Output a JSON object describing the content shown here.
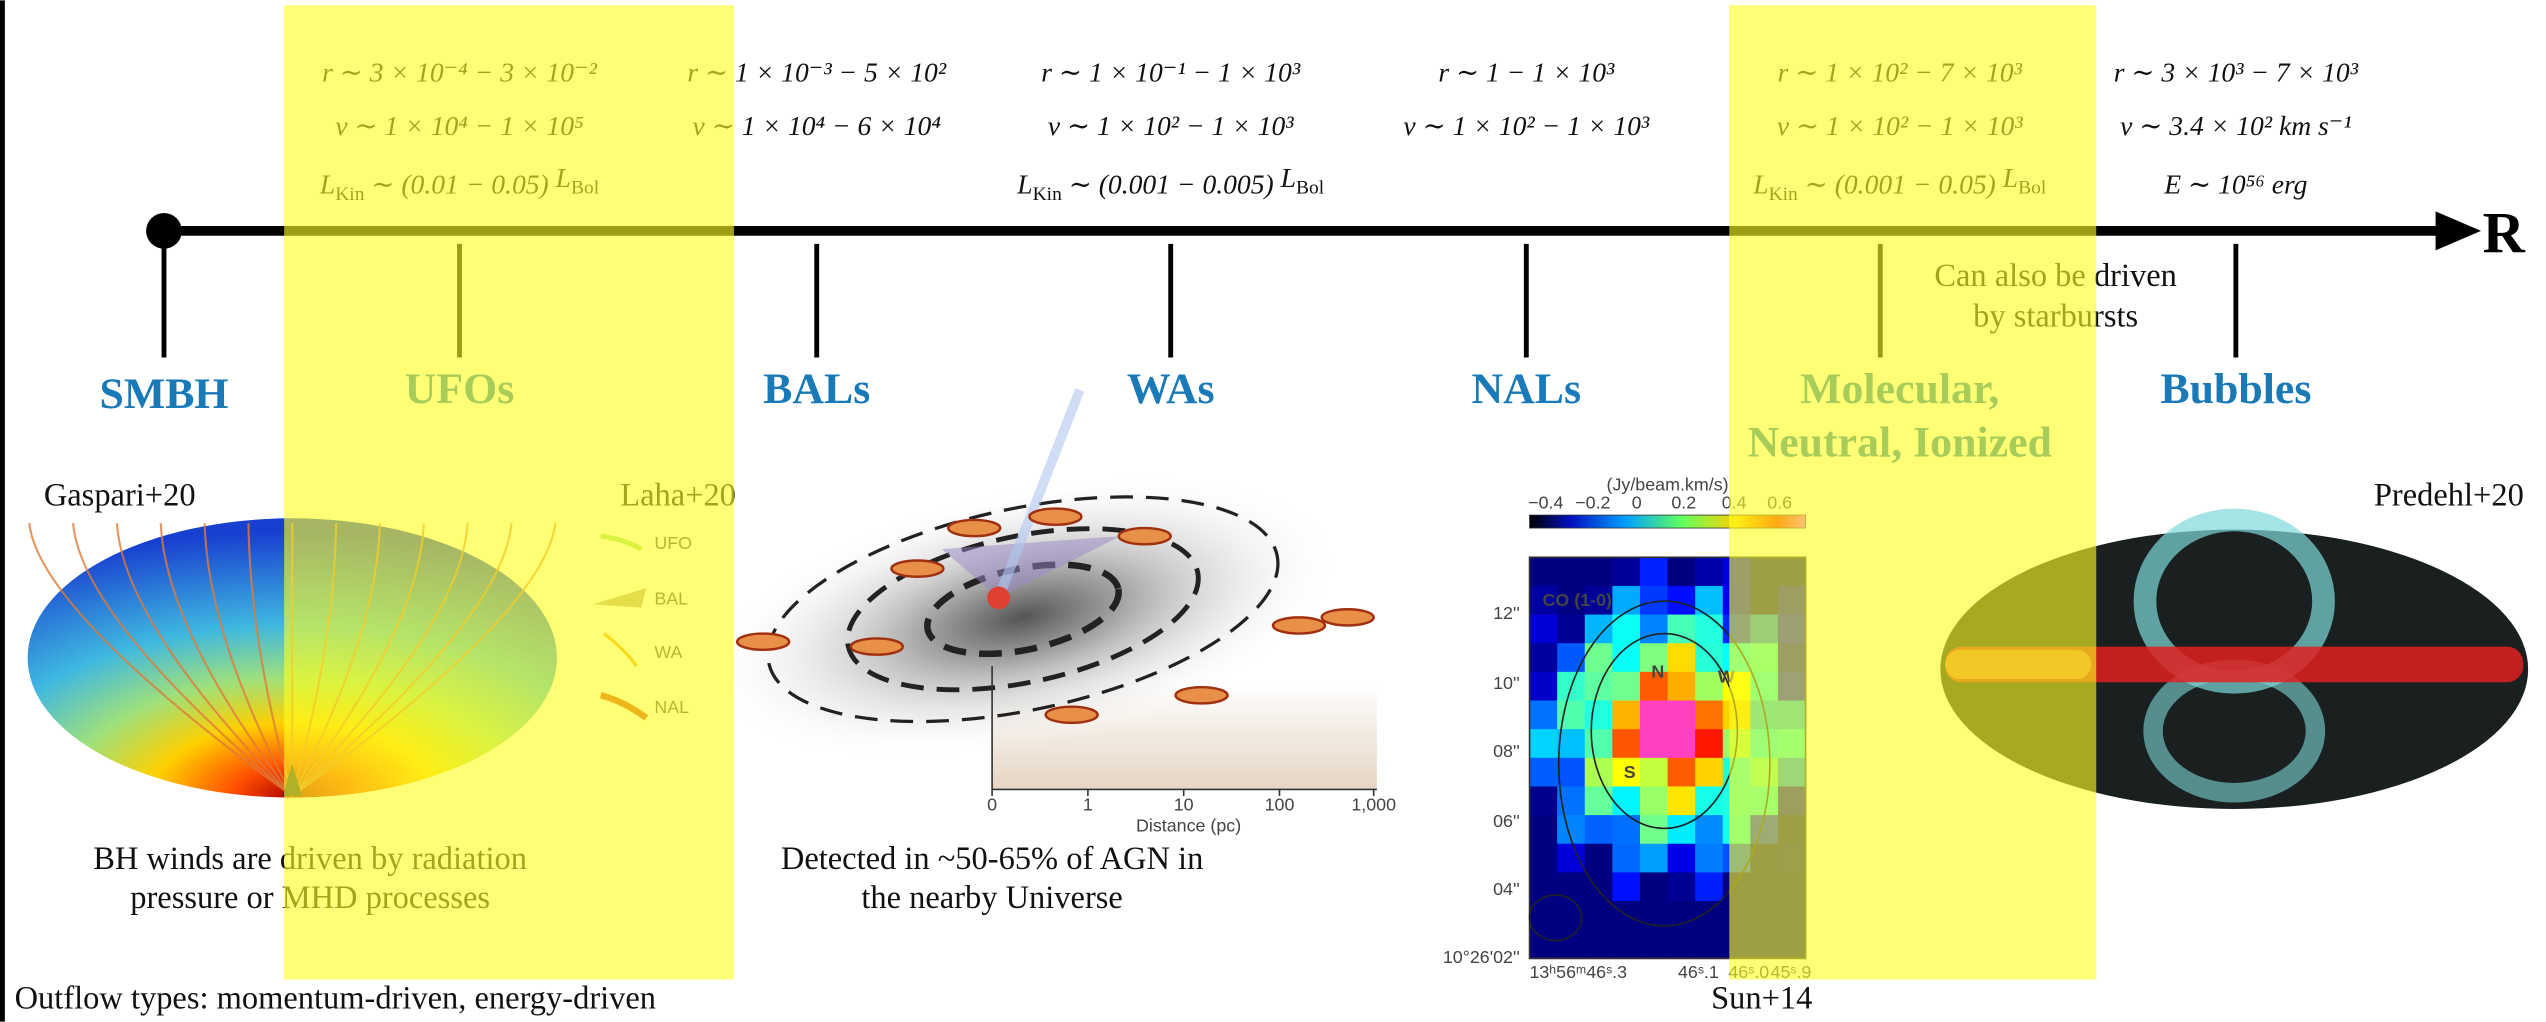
{
  "timeline": {
    "end_label": "R"
  },
  "columns": [
    {
      "label": [
        "SMBH"
      ]
    },
    {
      "label": [
        "UFOs"
      ],
      "lines": [
        "r ∼ 3 × 10⁻⁴ − 3 × 10⁻²",
        "v ∼ 1 × 10⁴ − 1 × 10⁵",
        [
          "L",
          "Kin",
          " ∼ (0.01 − 0.05) ",
          "L",
          "Bol"
        ]
      ]
    },
    {
      "label": [
        "BALs"
      ],
      "lines": [
        "r ∼ 1 × 10⁻³ − 5 × 10²",
        "v ∼ 1 × 10⁴ − 6 × 10⁴"
      ]
    },
    {
      "label": [
        "WAs"
      ],
      "lines": [
        "r ∼ 1 × 10⁻¹ − 1 × 10³",
        "v ∼ 1 × 10² − 1 × 10³",
        [
          "L",
          "Kin",
          " ∼ (0.001 − 0.005) ",
          "L",
          "Bol"
        ]
      ]
    },
    {
      "label": [
        "NALs"
      ],
      "lines": [
        "r ∼ 1 − 1 × 10³",
        "v ∼ 1 × 10² − 1 × 10³"
      ]
    },
    {
      "label": [
        "Molecular,",
        "Neutral, Ionized"
      ],
      "lines": [
        "r ∼ 1 × 10² − 7 × 10³",
        "v ∼ 1 × 10² − 1 × 10³",
        [
          "L",
          "Kin",
          " ∼ (0.001 − 0.05) ",
          "L",
          "Bol"
        ]
      ]
    },
    {
      "label": [
        "Bubbles"
      ],
      "lines": [
        "r ∼ 3 × 10³ − 7 × 10³",
        "v ∼ 3.4 × 10² km s⁻¹",
        "E ∼ 10⁵⁶ erg"
      ]
    }
  ],
  "note": [
    "Can also be driven",
    "by starbursts"
  ],
  "figures": {
    "gaspari": {
      "credit": "Gaspari+20",
      "caption": [
        "BH winds are driven by radiation",
        "pressure or MHD processes"
      ]
    },
    "laha": {
      "credit": "Laha+20",
      "legend": [
        "UFO",
        "BAL",
        "WA",
        "NAL"
      ],
      "axis_ticks": [
        "0",
        "1",
        "10",
        "100",
        "1,000"
      ],
      "axis_label": "Distance (pc)",
      "caption": [
        "Detected in ~50-65% of AGN in",
        "the nearby Universe"
      ]
    },
    "sun": {
      "credit": "Sun+14",
      "colorbar_label": "(Jy/beam.km/s)",
      "colorbar_ticks": [
        "−0.4",
        "−0.2",
        "0",
        "0.2",
        "0.4",
        "0.6"
      ],
      "map_label": "CO (1-0)",
      "markers": [
        "N",
        "W",
        "S"
      ],
      "y_ticks": [
        "12''",
        "10''",
        "08''",
        "06''",
        "04''",
        "10°26'02''"
      ],
      "x_ticks": [
        "13ʰ56ᵐ46ˢ.3",
        "46ˢ.1",
        "46ˢ.0",
        "45ˢ.9"
      ]
    },
    "predehl": {
      "credit": "Predehl+20"
    }
  },
  "footer": "Outflow types: momentum-driven, energy-driven"
}
